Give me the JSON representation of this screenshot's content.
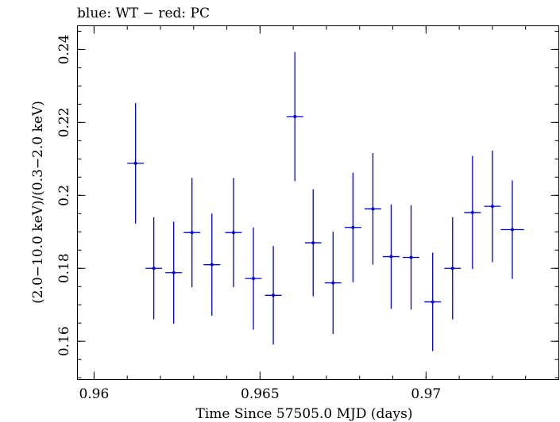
{
  "chart_data": {
    "type": "scatter",
    "title": "blue: WT − red: PC",
    "xlabel": "Time Since 57505.0 MJD (days)",
    "ylabel": "(2.0−10.0 keV)/(0.3−2.0 keV)",
    "xlim": [
      0.9595,
      0.974
    ],
    "ylim": [
      0.1495,
      0.2465
    ],
    "x_ticks": [
      {
        "value": 0.96,
        "label": "0.96"
      },
      {
        "value": 0.965,
        "label": "0.965"
      },
      {
        "value": 0.97,
        "label": "0.97"
      }
    ],
    "y_ticks": [
      {
        "value": 0.16,
        "label": "0.16"
      },
      {
        "value": 0.18,
        "label": "0.18"
      },
      {
        "value": 0.2,
        "label": "0.2"
      },
      {
        "value": 0.22,
        "label": "0.22"
      },
      {
        "value": 0.24,
        "label": "0.24"
      }
    ],
    "series": [
      {
        "color": "#0000dd",
        "points": [
          {
            "x": 0.96125,
            "xerr": 0.00025,
            "y": 0.2088,
            "yerr": 0.0165
          },
          {
            "x": 0.9618,
            "xerr": 0.00025,
            "y": 0.18,
            "yerr": 0.014
          },
          {
            "x": 0.9624,
            "xerr": 0.00025,
            "y": 0.1788,
            "yerr": 0.014
          },
          {
            "x": 0.96295,
            "xerr": 0.00025,
            "y": 0.1898,
            "yerr": 0.015
          },
          {
            "x": 0.96355,
            "xerr": 0.00025,
            "y": 0.181,
            "yerr": 0.014
          },
          {
            "x": 0.9642,
            "xerr": 0.00025,
            "y": 0.1898,
            "yerr": 0.015
          },
          {
            "x": 0.9648,
            "xerr": 0.00025,
            "y": 0.1772,
            "yerr": 0.014
          },
          {
            "x": 0.9654,
            "xerr": 0.00025,
            "y": 0.1726,
            "yerr": 0.0135
          },
          {
            "x": 0.96605,
            "xerr": 0.00025,
            "y": 0.2216,
            "yerr": 0.0177
          },
          {
            "x": 0.9666,
            "xerr": 0.00025,
            "y": 0.187,
            "yerr": 0.0147
          },
          {
            "x": 0.9672,
            "xerr": 0.00025,
            "y": 0.176,
            "yerr": 0.014
          },
          {
            "x": 0.9678,
            "xerr": 0.00025,
            "y": 0.1912,
            "yerr": 0.015
          },
          {
            "x": 0.9684,
            "xerr": 0.00025,
            "y": 0.1963,
            "yerr": 0.0153
          },
          {
            "x": 0.96895,
            "xerr": 0.00025,
            "y": 0.1832,
            "yerr": 0.0143
          },
          {
            "x": 0.96955,
            "xerr": 0.00025,
            "y": 0.183,
            "yerr": 0.0143
          },
          {
            "x": 0.9702,
            "xerr": 0.00025,
            "y": 0.1708,
            "yerr": 0.0135
          },
          {
            "x": 0.9708,
            "xerr": 0.00025,
            "y": 0.18,
            "yerr": 0.014
          },
          {
            "x": 0.9714,
            "xerr": 0.00025,
            "y": 0.1953,
            "yerr": 0.0155
          },
          {
            "x": 0.972,
            "xerr": 0.00025,
            "y": 0.197,
            "yerr": 0.0153
          },
          {
            "x": 0.9726,
            "xerr": 0.00035,
            "y": 0.1906,
            "yerr": 0.0135
          }
        ]
      }
    ]
  }
}
